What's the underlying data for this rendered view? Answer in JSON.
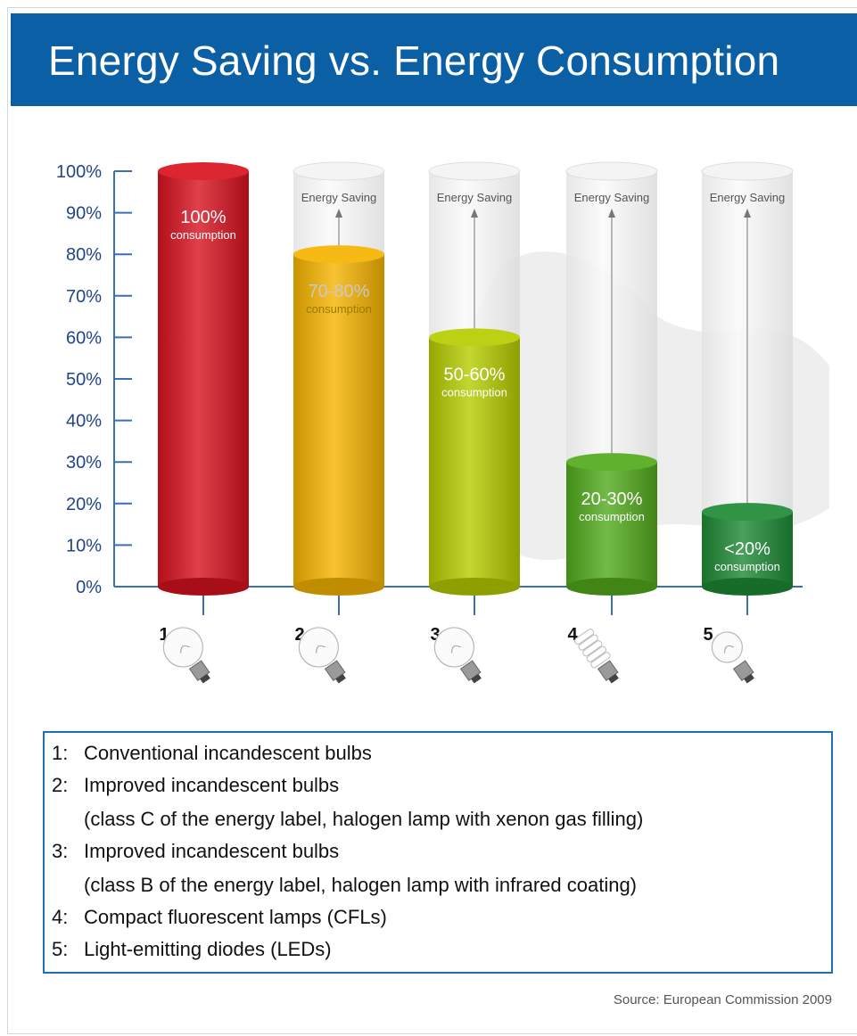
{
  "title": "Energy Saving vs. Energy Consumption",
  "chart_data": {
    "type": "bar",
    "y_ticks": [
      "0%",
      "10%",
      "20%",
      "30%",
      "40%",
      "50%",
      "60%",
      "70%",
      "80%",
      "90%",
      "100%"
    ],
    "ylim": [
      0,
      100
    ],
    "categories": [
      "1",
      "2",
      "3",
      "4",
      "5"
    ],
    "values": [
      100,
      80,
      60,
      30,
      18
    ],
    "colors": [
      "#d8121f",
      "#f6b400",
      "#b6cc00",
      "#52ab1c",
      "#1e8a35"
    ],
    "labels": [
      "100%",
      "70-80%",
      "50-60%",
      "20-30%",
      "<20%"
    ],
    "sublabel": "consumption",
    "saving_label": "Energy Saving",
    "bulbs": [
      "incandescent-bulb-icon",
      "halogen-bulb-icon",
      "halogen-ir-bulb-icon",
      "cfl-bulb-icon",
      "led-bulb-icon"
    ]
  },
  "legend": {
    "items": [
      {
        "num": "1:",
        "text": "Conventional incandescent bulbs",
        "sub": ""
      },
      {
        "num": "2:",
        "text": "Improved incandescent bulbs",
        "sub": "(class C of the energy label, halogen lamp with xenon gas filling)"
      },
      {
        "num": "3:",
        "text": "Improved incandescent bulbs",
        "sub": "(class B of the energy label, halogen lamp with infrared coating)"
      },
      {
        "num": "4:",
        "text": "Compact fluorescent lamps (CFLs)",
        "sub": ""
      },
      {
        "num": "5:",
        "text": "Light-emitting diodes (LEDs)",
        "sub": ""
      }
    ]
  },
  "source": "Source: European Commission 2009"
}
